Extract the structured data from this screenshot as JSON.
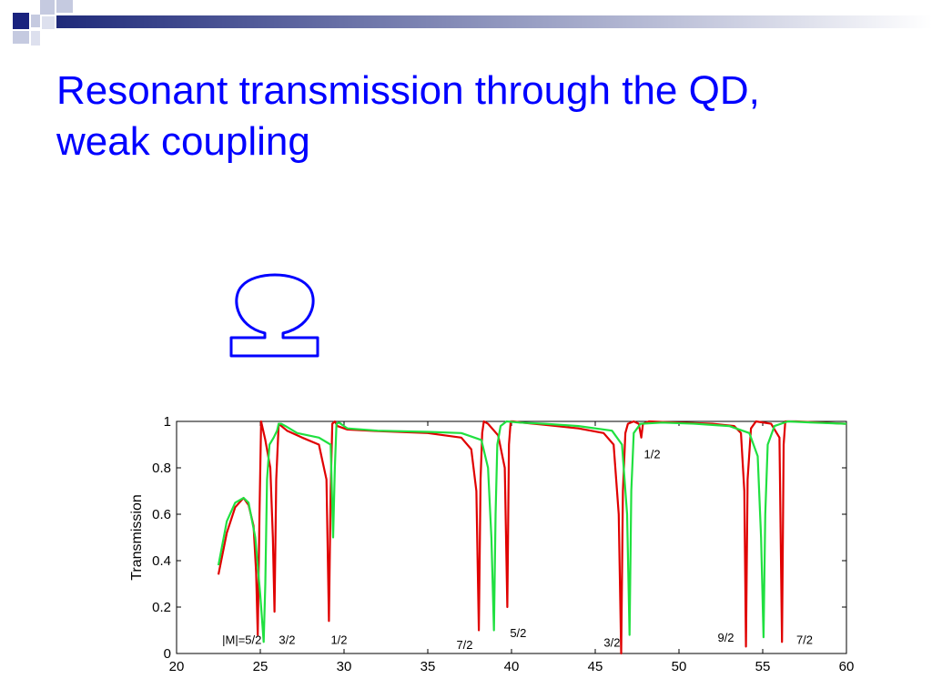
{
  "slide": {
    "title_line1": "Resonant transmission through the QD,",
    "title_line2": "weak coupling",
    "accent_color": "#0000ff",
    "decoration": "navy-and-grey checker squares with horizontal gradient bar",
    "diagram_icon": "omega-shaped-dot-icon"
  },
  "chart_data": {
    "type": "line",
    "title": "",
    "xlabel": "",
    "ylabel": "Transmission",
    "xlim": [
      20,
      60
    ],
    "ylim": [
      0,
      1
    ],
    "xticks": [
      "20",
      "25",
      "30",
      "35",
      "40",
      "45",
      "50",
      "55",
      "60"
    ],
    "yticks": [
      "0",
      "0.2",
      "0.4",
      "0.6",
      "0.8",
      "1"
    ],
    "grid": false,
    "series": [
      {
        "color": "#e00000",
        "x": [
          22.5,
          23.0,
          23.5,
          24.0,
          24.3,
          24.6,
          24.75,
          24.85,
          24.95,
          25.05,
          25.3,
          25.6,
          25.75,
          25.85,
          25.95,
          26.1,
          26.6,
          27.5,
          28.5,
          28.95,
          29.1,
          29.2,
          29.3,
          29.45,
          29.6,
          30.2,
          32,
          35,
          37,
          37.6,
          37.9,
          38.05,
          38.15,
          38.25,
          38.35,
          38.6,
          39.2,
          39.6,
          39.75,
          39.85,
          39.95,
          40.1,
          40.6,
          42,
          44,
          45.5,
          46.1,
          46.4,
          46.55,
          46.65,
          46.8,
          46.95,
          47.3,
          47.6,
          47.75,
          47.85,
          48.2,
          50,
          52,
          53.3,
          53.7,
          53.9,
          54.0,
          54.1,
          54.3,
          54.6,
          55.5,
          56.0,
          56.15,
          56.25,
          56.35,
          56.5,
          57.0,
          58.5,
          60
        ],
        "y": [
          0.34,
          0.52,
          0.63,
          0.67,
          0.64,
          0.55,
          0.35,
          0.08,
          0.6,
          1.0,
          0.92,
          0.8,
          0.5,
          0.18,
          0.75,
          0.99,
          0.96,
          0.93,
          0.9,
          0.75,
          0.14,
          0.7,
          0.99,
          1.0,
          0.98,
          0.965,
          0.958,
          0.95,
          0.93,
          0.88,
          0.7,
          0.1,
          0.75,
          0.95,
          1.0,
          0.99,
          0.94,
          0.8,
          0.2,
          0.9,
          1.0,
          1.0,
          0.995,
          0.985,
          0.97,
          0.95,
          0.9,
          0.6,
          0.0,
          0.7,
          0.95,
          0.99,
          1.0,
          0.99,
          0.93,
          0.99,
          1.0,
          0.995,
          0.99,
          0.98,
          0.95,
          0.7,
          0.03,
          0.75,
          0.97,
          1.0,
          0.99,
          0.93,
          0.05,
          0.9,
          1.0,
          1.0,
          1.0,
          0.995,
          0.99
        ]
      },
      {
        "color": "#20e040",
        "x": [
          22.5,
          23.0,
          23.5,
          24.0,
          24.3,
          24.7,
          25.0,
          25.2,
          25.3,
          25.4,
          25.55,
          25.8,
          26.0,
          26.1,
          26.25,
          26.5,
          27.2,
          28.5,
          29.2,
          29.35,
          29.45,
          29.55,
          29.7,
          30.2,
          32,
          35,
          37,
          38.2,
          38.6,
          38.8,
          38.95,
          39.05,
          39.15,
          39.35,
          39.7,
          40.5,
          42,
          44,
          46,
          46.6,
          46.9,
          47.05,
          47.15,
          47.3,
          47.7,
          49,
          51,
          53,
          54.2,
          54.7,
          54.9,
          55.05,
          55.15,
          55.3,
          55.7,
          56.5,
          58,
          60
        ],
        "y": [
          0.38,
          0.57,
          0.65,
          0.67,
          0.65,
          0.5,
          0.25,
          0.05,
          0.3,
          0.75,
          0.9,
          0.93,
          0.96,
          0.99,
          0.99,
          0.98,
          0.95,
          0.93,
          0.9,
          0.5,
          0.8,
          0.99,
          0.995,
          0.97,
          0.96,
          0.955,
          0.95,
          0.92,
          0.8,
          0.5,
          0.1,
          0.6,
          0.9,
          0.98,
          1.0,
          0.995,
          0.99,
          0.98,
          0.96,
          0.9,
          0.6,
          0.08,
          0.7,
          0.95,
          0.99,
          0.995,
          0.99,
          0.98,
          0.95,
          0.85,
          0.5,
          0.07,
          0.6,
          0.9,
          0.98,
          1.0,
          0.995,
          0.99
        ]
      }
    ],
    "annotations": [
      {
        "text": "|M|=5/2",
        "x": 23.9,
        "y": 0.06
      },
      {
        "text": "3/2",
        "x": 26.6,
        "y": 0.06
      },
      {
        "text": "1/2",
        "x": 29.7,
        "y": 0.06
      },
      {
        "text": "7/2",
        "x": 37.2,
        "y": 0.04
      },
      {
        "text": "5/2",
        "x": 40.4,
        "y": 0.09
      },
      {
        "text": "3/2",
        "x": 46.0,
        "y": 0.05
      },
      {
        "text": "1/2",
        "x": 48.4,
        "y": 0.86
      },
      {
        "text": "9/2",
        "x": 52.8,
        "y": 0.07
      },
      {
        "text": "7/2",
        "x": 57.5,
        "y": 0.06
      }
    ]
  }
}
